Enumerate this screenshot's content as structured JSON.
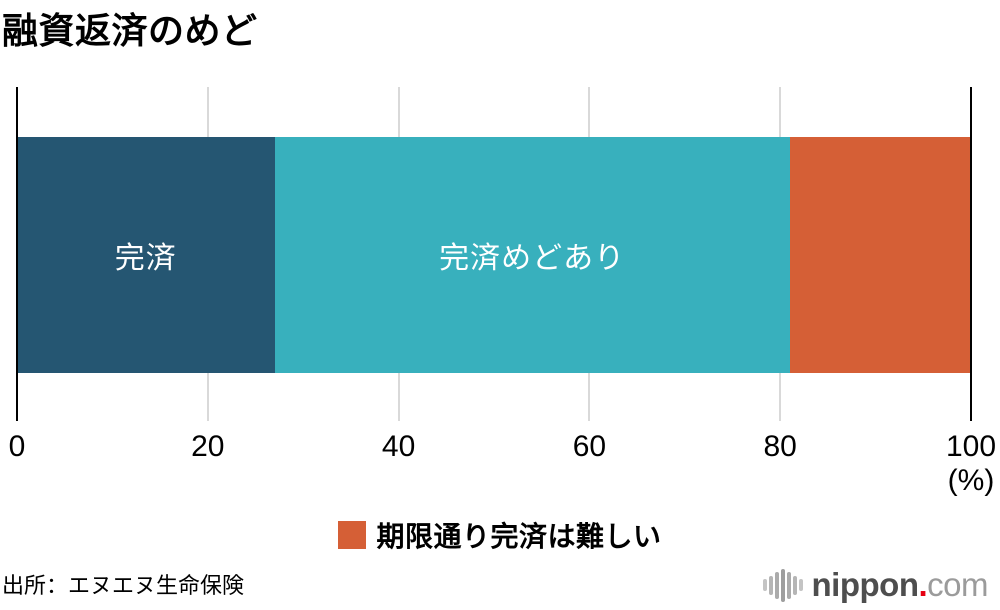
{
  "page": {
    "title": "融資返済のめど",
    "source": "出所：エヌエヌ生命保険"
  },
  "chart_data": {
    "type": "bar",
    "subtype": "horizontal-stacked",
    "title": "融資返済のめど",
    "categories": [
      "融資返済のめど"
    ],
    "series": [
      {
        "name": "完済",
        "value": 27,
        "color": "#255672",
        "label_in_bar": true
      },
      {
        "name": "完済めどあり",
        "value": 54,
        "color": "#38b0bd",
        "label_in_bar": true
      },
      {
        "name": "期限通り完済は難しい",
        "value": 19,
        "color": "#d55f36",
        "label_in_bar": false
      }
    ],
    "xlim": [
      0,
      100
    ],
    "x_ticks": [
      "0",
      "20",
      "40",
      "60",
      "80",
      "100"
    ],
    "xlabel": "(%)",
    "grid": true,
    "legend_position": "bottom"
  },
  "axis": {
    "ticks": [
      "0",
      "20",
      "40",
      "60",
      "80",
      "100"
    ],
    "unit_label": "(%)"
  },
  "legend": {
    "swatch_icon": "legend-square-swatch",
    "label": "期限通り完済は難しい",
    "color": "#d55f36"
  },
  "logo": {
    "icon": "audio-waveform-icon",
    "name": "nippon",
    "dot": ".",
    "tld": "com",
    "name_color": "#4e4e4e",
    "dot_color": "#e60012",
    "tld_color": "#9b9b9b"
  },
  "colors": {
    "grid": "#d9d9d9",
    "axis_edge": "#000000",
    "bar_label_text": "#ffffff"
  }
}
